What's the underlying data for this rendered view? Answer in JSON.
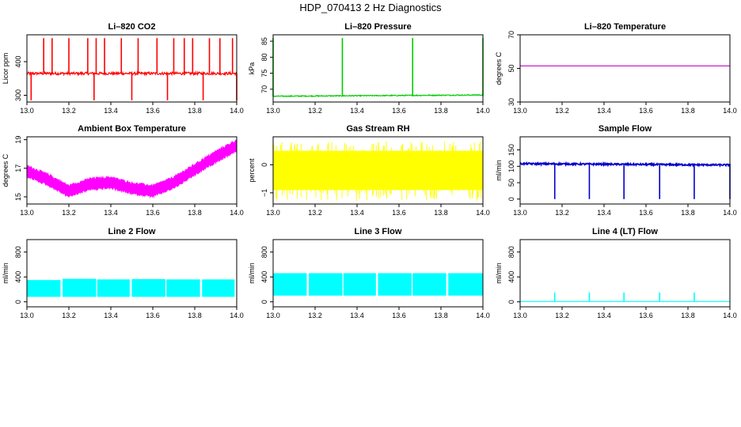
{
  "figure_title": "HDP_070413  2 Hz Diagnostics",
  "chart_data": [
    {
      "type": "line",
      "title": "Li–820 CO2",
      "ylabel": "Licor ppm",
      "xlim": [
        13.0,
        14.0
      ],
      "ylim": [
        280,
        480
      ],
      "xticks": [
        13.0,
        13.2,
        13.4,
        13.6,
        13.8,
        14.0
      ],
      "xtick_labels": [
        "13.0",
        "13.2",
        "13.4",
        "13.6",
        "13.8",
        "14.0"
      ],
      "yticks": [
        300,
        400
      ],
      "ytick_labels": [
        "300",
        "400"
      ],
      "color": "#ff0000",
      "series": {
        "name": "CO2",
        "base": 365,
        "noise": 4,
        "spikes_up": [
          13.08,
          13.12,
          13.2,
          13.29,
          13.33,
          13.37,
          13.45,
          13.53,
          13.62,
          13.7,
          13.75,
          13.79,
          13.87,
          13.92,
          13.98
        ],
        "spike_up_to": 470,
        "spikes_down": [
          13.02,
          13.32,
          13.5,
          13.67,
          13.84,
          14.0
        ],
        "spike_down_to": 285
      }
    },
    {
      "type": "line",
      "title": "Li–820 Pressure",
      "ylabel": "kPa",
      "xlim": [
        13.0,
        14.0
      ],
      "ylim": [
        66,
        87
      ],
      "xticks": [
        13.0,
        13.2,
        13.4,
        13.6,
        13.8,
        14.0
      ],
      "xtick_labels": [
        "13.0",
        "13.2",
        "13.4",
        "13.6",
        "13.8",
        "14.0"
      ],
      "yticks": [
        70,
        75,
        80,
        85
      ],
      "ytick_labels": [
        "70",
        "75",
        "80",
        "85"
      ],
      "color": "#00cc00",
      "series": {
        "name": "Pressure",
        "start": 67.8,
        "end": 68.2,
        "noise": 0.15,
        "spikes_up": [
          13.0,
          13.33,
          13.665,
          14.0
        ],
        "spike_up_to": 86
      }
    },
    {
      "type": "line",
      "title": "Li–820 Temperature",
      "ylabel": "degrees C",
      "xlim": [
        13.0,
        14.0
      ],
      "ylim": [
        30,
        70
      ],
      "xticks": [
        13.0,
        13.2,
        13.4,
        13.6,
        13.8,
        14.0
      ],
      "xtick_labels": [
        "13.0",
        "13.2",
        "13.4",
        "13.6",
        "13.8",
        "14.0"
      ],
      "yticks": [
        30,
        50,
        70
      ],
      "ytick_labels": [
        "30",
        "50",
        "70"
      ],
      "color": "#cc00cc",
      "series": {
        "name": "Temperature",
        "value": 51.5
      }
    },
    {
      "type": "area",
      "title": "Ambient Box Temperature",
      "ylabel": "degrees C",
      "xlim": [
        13.0,
        14.0
      ],
      "ylim": [
        14.5,
        19.2
      ],
      "xticks": [
        13.0,
        13.2,
        13.4,
        13.6,
        13.8,
        14.0
      ],
      "xtick_labels": [
        "13.0",
        "13.2",
        "13.4",
        "13.6",
        "13.8",
        "14.0"
      ],
      "yticks": [
        15,
        17,
        19
      ],
      "ytick_labels": [
        "15",
        "17",
        "19"
      ],
      "color": "#ff00ff",
      "series": {
        "name": "Box Temperature",
        "x": [
          13.0,
          13.1,
          13.2,
          13.3,
          13.4,
          13.5,
          13.6,
          13.7,
          13.8,
          13.9,
          14.0
        ],
        "y": [
          16.8,
          16.2,
          15.4,
          15.9,
          16.0,
          15.6,
          15.4,
          16.0,
          16.9,
          17.8,
          18.6
        ],
        "band": 0.45
      }
    },
    {
      "type": "area",
      "title": "Gas Stream RH",
      "ylabel": "percent",
      "xlim": [
        13.0,
        14.0
      ],
      "ylim": [
        -1.4,
        1.0
      ],
      "xticks": [
        13.0,
        13.2,
        13.4,
        13.6,
        13.8,
        14.0
      ],
      "xtick_labels": [
        "13.0",
        "13.2",
        "13.4",
        "13.6",
        "13.8",
        "14.0"
      ],
      "yticks": [
        -1.0,
        0.0
      ],
      "ytick_labels": [
        "−1",
        "0"
      ],
      "color": "#ffff00",
      "series": {
        "name": "RH",
        "upper": 0.5,
        "lower": -0.9,
        "spike_min": -1.3,
        "spike_max": 0.85
      }
    },
    {
      "type": "line",
      "title": "Sample Flow",
      "ylabel": "ml/min",
      "xlim": [
        13.0,
        14.0
      ],
      "ylim": [
        -15,
        190
      ],
      "xticks": [
        13.0,
        13.2,
        13.4,
        13.6,
        13.8,
        14.0
      ],
      "xtick_labels": [
        "13.0",
        "13.2",
        "13.4",
        "13.6",
        "13.8",
        "14.0"
      ],
      "yticks": [
        0,
        50,
        100,
        150
      ],
      "ytick_labels": [
        "0",
        "50",
        "100",
        "150"
      ],
      "color": "#0000cc",
      "series": {
        "name": "Sample Flow",
        "start": 108,
        "end": 104,
        "noise": 2.5,
        "drops": [
          13.165,
          13.33,
          13.495,
          13.665,
          13.83,
          14.0
        ],
        "drop_to": 0
      }
    },
    {
      "type": "area",
      "title": "Line 2 Flow",
      "ylabel": "ml/min",
      "xlim": [
        13.0,
        14.0
      ],
      "ylim": [
        -80,
        1000
      ],
      "xticks": [
        13.0,
        13.2,
        13.4,
        13.6,
        13.8,
        14.0
      ],
      "xtick_labels": [
        "13.0",
        "13.2",
        "13.4",
        "13.6",
        "13.8",
        "14.0"
      ],
      "yticks": [
        0,
        400,
        800
      ],
      "ytick_labels": [
        "0",
        "400",
        "800"
      ],
      "color": "#00ffff",
      "series": {
        "name": "Line 2",
        "segments": [
          [
            13.0,
            13.16
          ],
          [
            13.17,
            13.33
          ],
          [
            13.335,
            13.49
          ],
          [
            13.5,
            13.66
          ],
          [
            13.665,
            13.825
          ],
          [
            13.835,
            13.99
          ]
        ],
        "upper": [
          350,
          370,
          360,
          365,
          360,
          360
        ],
        "lower": 80
      }
    },
    {
      "type": "area",
      "title": "Line 3 Flow",
      "ylabel": "ml/min",
      "xlim": [
        13.0,
        14.0
      ],
      "ylim": [
        -80,
        1000
      ],
      "xticks": [
        13.0,
        13.2,
        13.4,
        13.6,
        13.8,
        14.0
      ],
      "xtick_labels": [
        "13.0",
        "13.2",
        "13.4",
        "13.6",
        "13.8",
        "14.0"
      ],
      "yticks": [
        0,
        400,
        800
      ],
      "ytick_labels": [
        "0",
        "400",
        "800"
      ],
      "color": "#00ffff",
      "series": {
        "name": "Line 3",
        "segments": [
          [
            13.0,
            13.16
          ],
          [
            13.17,
            13.33
          ],
          [
            13.335,
            13.49
          ],
          [
            13.5,
            13.66
          ],
          [
            13.665,
            13.825
          ],
          [
            13.835,
            14.0
          ]
        ],
        "upper": [
          460,
          460,
          460,
          460,
          460,
          460
        ],
        "lower": 100
      }
    },
    {
      "type": "line",
      "title": "Line 4 (LT) Flow",
      "ylabel": "ml/min",
      "xlim": [
        13.0,
        14.0
      ],
      "ylim": [
        -80,
        1000
      ],
      "xticks": [
        13.0,
        13.2,
        13.4,
        13.6,
        13.8,
        14.0
      ],
      "xtick_labels": [
        "13.0",
        "13.2",
        "13.4",
        "13.6",
        "13.8",
        "14.0"
      ],
      "yticks": [
        0,
        400,
        800
      ],
      "ytick_labels": [
        "0",
        "400",
        "800"
      ],
      "color": "#00ffff",
      "series": {
        "name": "Line 4",
        "base": 5,
        "spikes_up": [
          13.165,
          13.33,
          13.495,
          13.665,
          13.83
        ],
        "spike_up_to": 150,
        "spike_small": [
          13.33,
          13.665
        ],
        "spike_small_to": 80
      }
    }
  ]
}
